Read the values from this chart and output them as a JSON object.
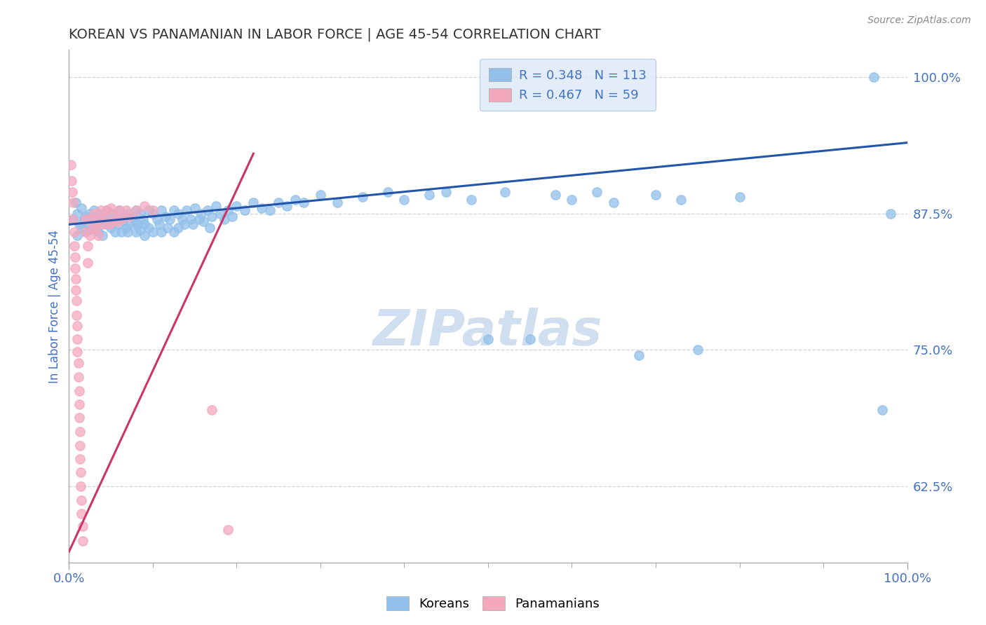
{
  "title": "KOREAN VS PANAMANIAN IN LABOR FORCE | AGE 45-54 CORRELATION CHART",
  "source": "Source: ZipAtlas.com",
  "ylabel": "In Labor Force | Age 45-54",
  "xlim": [
    0.0,
    1.0
  ],
  "ylim": [
    0.555,
    1.025
  ],
  "yticks": [
    0.625,
    0.75,
    0.875,
    1.0
  ],
  "ytick_labels": [
    "62.5%",
    "75.0%",
    "87.5%",
    "100.0%"
  ],
  "xtick_labels": [
    "0.0%",
    "100.0%"
  ],
  "korean_color": "#92c0ea",
  "panamanian_color": "#f4a8be",
  "korean_R": 0.348,
  "korean_N": 113,
  "panamanian_R": 0.467,
  "panamanian_N": 59,
  "background_color": "#ffffff",
  "grid_color": "#c8c8c8",
  "title_color": "#333333",
  "axis_label_color": "#4472c4",
  "korean_line_color": "#2255aa",
  "panamanian_line_color": "#cc3366",
  "watermark_color": "#d0dff0",
  "korean_points": [
    [
      0.005,
      0.87
    ],
    [
      0.008,
      0.885
    ],
    [
      0.01,
      0.855
    ],
    [
      0.01,
      0.875
    ],
    [
      0.012,
      0.865
    ],
    [
      0.015,
      0.88
    ],
    [
      0.015,
      0.862
    ],
    [
      0.018,
      0.87
    ],
    [
      0.02,
      0.858
    ],
    [
      0.02,
      0.872
    ],
    [
      0.022,
      0.865
    ],
    [
      0.025,
      0.875
    ],
    [
      0.025,
      0.86
    ],
    [
      0.028,
      0.87
    ],
    [
      0.03,
      0.865
    ],
    [
      0.03,
      0.878
    ],
    [
      0.032,
      0.86
    ],
    [
      0.035,
      0.87
    ],
    [
      0.035,
      0.858
    ],
    [
      0.038,
      0.875
    ],
    [
      0.04,
      0.868
    ],
    [
      0.04,
      0.855
    ],
    [
      0.042,
      0.872
    ],
    [
      0.045,
      0.865
    ],
    [
      0.045,
      0.878
    ],
    [
      0.048,
      0.87
    ],
    [
      0.05,
      0.862
    ],
    [
      0.05,
      0.875
    ],
    [
      0.052,
      0.868
    ],
    [
      0.055,
      0.858
    ],
    [
      0.058,
      0.872
    ],
    [
      0.06,
      0.865
    ],
    [
      0.06,
      0.878
    ],
    [
      0.062,
      0.858
    ],
    [
      0.065,
      0.87
    ],
    [
      0.068,
      0.862
    ],
    [
      0.07,
      0.875
    ],
    [
      0.07,
      0.858
    ],
    [
      0.072,
      0.865
    ],
    [
      0.075,
      0.872
    ],
    [
      0.078,
      0.868
    ],
    [
      0.08,
      0.878
    ],
    [
      0.08,
      0.858
    ],
    [
      0.082,
      0.865
    ],
    [
      0.085,
      0.875
    ],
    [
      0.085,
      0.86
    ],
    [
      0.088,
      0.87
    ],
    [
      0.09,
      0.865
    ],
    [
      0.09,
      0.855
    ],
    [
      0.095,
      0.878
    ],
    [
      0.095,
      0.862
    ],
    [
      0.1,
      0.875
    ],
    [
      0.1,
      0.858
    ],
    [
      0.105,
      0.87
    ],
    [
      0.108,
      0.865
    ],
    [
      0.11,
      0.878
    ],
    [
      0.11,
      0.858
    ],
    [
      0.115,
      0.872
    ],
    [
      0.118,
      0.862
    ],
    [
      0.12,
      0.87
    ],
    [
      0.125,
      0.878
    ],
    [
      0.125,
      0.858
    ],
    [
      0.13,
      0.875
    ],
    [
      0.13,
      0.862
    ],
    [
      0.135,
      0.87
    ],
    [
      0.138,
      0.865
    ],
    [
      0.14,
      0.878
    ],
    [
      0.145,
      0.87
    ],
    [
      0.148,
      0.865
    ],
    [
      0.15,
      0.88
    ],
    [
      0.155,
      0.87
    ],
    [
      0.158,
      0.875
    ],
    [
      0.16,
      0.868
    ],
    [
      0.165,
      0.878
    ],
    [
      0.168,
      0.862
    ],
    [
      0.17,
      0.872
    ],
    [
      0.175,
      0.882
    ],
    [
      0.18,
      0.875
    ],
    [
      0.185,
      0.87
    ],
    [
      0.19,
      0.878
    ],
    [
      0.195,
      0.872
    ],
    [
      0.2,
      0.882
    ],
    [
      0.21,
      0.878
    ],
    [
      0.22,
      0.885
    ],
    [
      0.23,
      0.88
    ],
    [
      0.24,
      0.878
    ],
    [
      0.25,
      0.885
    ],
    [
      0.26,
      0.882
    ],
    [
      0.27,
      0.888
    ],
    [
      0.28,
      0.885
    ],
    [
      0.3,
      0.892
    ],
    [
      0.32,
      0.885
    ],
    [
      0.35,
      0.89
    ],
    [
      0.38,
      0.895
    ],
    [
      0.4,
      0.888
    ],
    [
      0.43,
      0.892
    ],
    [
      0.45,
      0.895
    ],
    [
      0.48,
      0.888
    ],
    [
      0.5,
      0.76
    ],
    [
      0.52,
      0.895
    ],
    [
      0.55,
      0.76
    ],
    [
      0.58,
      0.892
    ],
    [
      0.6,
      0.888
    ],
    [
      0.63,
      0.895
    ],
    [
      0.65,
      0.885
    ],
    [
      0.68,
      0.745
    ],
    [
      0.7,
      0.892
    ],
    [
      0.73,
      0.888
    ],
    [
      0.75,
      0.75
    ],
    [
      0.8,
      0.89
    ],
    [
      0.96,
      1.0
    ],
    [
      0.97,
      0.695
    ],
    [
      0.98,
      0.875
    ]
  ],
  "panamanian_points": [
    [
      0.002,
      0.92
    ],
    [
      0.003,
      0.905
    ],
    [
      0.004,
      0.895
    ],
    [
      0.005,
      0.885
    ],
    [
      0.005,
      0.87
    ],
    [
      0.006,
      0.858
    ],
    [
      0.006,
      0.845
    ],
    [
      0.007,
      0.835
    ],
    [
      0.007,
      0.825
    ],
    [
      0.008,
      0.815
    ],
    [
      0.008,
      0.805
    ],
    [
      0.009,
      0.795
    ],
    [
      0.009,
      0.782
    ],
    [
      0.01,
      0.772
    ],
    [
      0.01,
      0.76
    ],
    [
      0.01,
      0.748
    ],
    [
      0.011,
      0.738
    ],
    [
      0.011,
      0.725
    ],
    [
      0.012,
      0.712
    ],
    [
      0.012,
      0.7
    ],
    [
      0.012,
      0.688
    ],
    [
      0.013,
      0.675
    ],
    [
      0.013,
      0.662
    ],
    [
      0.013,
      0.65
    ],
    [
      0.014,
      0.638
    ],
    [
      0.014,
      0.625
    ],
    [
      0.015,
      0.612
    ],
    [
      0.015,
      0.6
    ],
    [
      0.016,
      0.588
    ],
    [
      0.016,
      0.575
    ],
    [
      0.02,
      0.87
    ],
    [
      0.02,
      0.858
    ],
    [
      0.022,
      0.845
    ],
    [
      0.022,
      0.83
    ],
    [
      0.025,
      0.87
    ],
    [
      0.025,
      0.855
    ],
    [
      0.028,
      0.862
    ],
    [
      0.03,
      0.875
    ],
    [
      0.032,
      0.862
    ],
    [
      0.035,
      0.87
    ],
    [
      0.035,
      0.855
    ],
    [
      0.038,
      0.878
    ],
    [
      0.04,
      0.865
    ],
    [
      0.042,
      0.872
    ],
    [
      0.045,
      0.878
    ],
    [
      0.048,
      0.865
    ],
    [
      0.05,
      0.88
    ],
    [
      0.052,
      0.868
    ],
    [
      0.055,
      0.875
    ],
    [
      0.058,
      0.868
    ],
    [
      0.06,
      0.878
    ],
    [
      0.062,
      0.87
    ],
    [
      0.068,
      0.878
    ],
    [
      0.072,
      0.872
    ],
    [
      0.08,
      0.878
    ],
    [
      0.09,
      0.882
    ],
    [
      0.1,
      0.878
    ],
    [
      0.17,
      0.695
    ],
    [
      0.19,
      0.585
    ]
  ]
}
